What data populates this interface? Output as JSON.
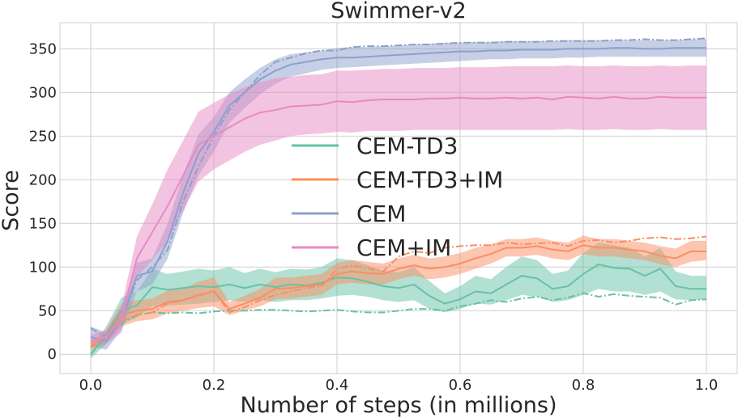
{
  "chart_data": {
    "type": "line",
    "title": "Swimmer-v2",
    "xlabel": "Number of steps (in millions)",
    "ylabel": "Score",
    "xlim": [
      -0.05,
      1.05
    ],
    "ylim": [
      -22,
      380
    ],
    "xticks": [
      0.0,
      0.2,
      0.4,
      0.6,
      0.8,
      1.0
    ],
    "xtick_labels": [
      "0.0",
      "0.2",
      "0.4",
      "0.6",
      "0.8",
      "1.0"
    ],
    "yticks": [
      0,
      50,
      100,
      150,
      200,
      250,
      300,
      350
    ],
    "ytick_labels": [
      "0",
      "50",
      "100",
      "150",
      "200",
      "250",
      "300",
      "350"
    ],
    "grid": true,
    "legend_position": "center",
    "series": [
      {
        "name": "CEM-TD3",
        "color": "#66c2a5",
        "x": [
          0.0,
          0.025,
          0.05,
          0.075,
          0.1,
          0.125,
          0.15,
          0.175,
          0.2,
          0.225,
          0.25,
          0.275,
          0.3,
          0.325,
          0.35,
          0.375,
          0.4,
          0.425,
          0.45,
          0.475,
          0.5,
          0.525,
          0.55,
          0.575,
          0.6,
          0.625,
          0.65,
          0.675,
          0.7,
          0.725,
          0.75,
          0.775,
          0.8,
          0.825,
          0.85,
          0.875,
          0.9,
          0.925,
          0.95,
          0.975,
          1.0
        ],
        "mean": [
          0,
          22,
          50,
          56,
          77,
          74,
          76,
          78,
          77,
          80,
          76,
          80,
          77,
          80,
          79,
          82,
          88,
          87,
          83,
          78,
          76,
          80,
          67,
          58,
          63,
          72,
          70,
          80,
          90,
          87,
          75,
          78,
          92,
          103,
          99,
          98,
          90,
          98,
          78,
          75,
          75
        ],
        "lower": [
          -5,
          12,
          35,
          42,
          55,
          56,
          57,
          58,
          60,
          62,
          60,
          62,
          60,
          62,
          62,
          64,
          67,
          68,
          66,
          62,
          60,
          62,
          52,
          48,
          52,
          58,
          57,
          62,
          68,
          66,
          60,
          62,
          68,
          75,
          72,
          72,
          68,
          72,
          63,
          62,
          62
        ],
        "upper": [
          5,
          32,
          65,
          72,
          98,
          92,
          95,
          98,
          96,
          100,
          93,
          98,
          94,
          98,
          97,
          100,
          110,
          108,
          102,
          96,
          94,
          100,
          84,
          70,
          78,
          90,
          86,
          100,
          112,
          108,
          92,
          96,
          116,
          128,
          125,
          122,
          112,
          122,
          95,
          90,
          90
        ],
        "alt": [
          0,
          20,
          35,
          45,
          48,
          47,
          48,
          47,
          49,
          50,
          50,
          51,
          51,
          50,
          49,
          50,
          51,
          49,
          48,
          48,
          50,
          52,
          52,
          50,
          55,
          58,
          62,
          60,
          64,
          66,
          62,
          65,
          70,
          66,
          69,
          67,
          66,
          65,
          57,
          62,
          63
        ]
      },
      {
        "name": "CEM-TD3+IM",
        "color": "#fc8d62",
        "x": [
          0.0,
          0.025,
          0.05,
          0.075,
          0.1,
          0.125,
          0.15,
          0.175,
          0.2,
          0.225,
          0.25,
          0.275,
          0.3,
          0.325,
          0.35,
          0.375,
          0.4,
          0.425,
          0.45,
          0.475,
          0.5,
          0.525,
          0.55,
          0.575,
          0.6,
          0.625,
          0.65,
          0.675,
          0.7,
          0.725,
          0.75,
          0.775,
          0.8,
          0.825,
          0.85,
          0.875,
          0.9,
          0.925,
          0.95,
          0.975,
          1.0
        ],
        "mean": [
          10,
          20,
          45,
          50,
          52,
          60,
          62,
          68,
          72,
          52,
          58,
          65,
          75,
          76,
          78,
          80,
          92,
          95,
          93,
          92,
          98,
          102,
          98,
          100,
          104,
          110,
          115,
          122,
          122,
          124,
          120,
          118,
          125,
          122,
          122,
          120,
          118,
          113,
          110,
          118,
          118
        ],
        "lower": [
          5,
          12,
          32,
          38,
          40,
          47,
          50,
          53,
          55,
          45,
          50,
          55,
          63,
          64,
          66,
          68,
          80,
          82,
          80,
          80,
          86,
          90,
          86,
          88,
          92,
          98,
          104,
          112,
          112,
          114,
          110,
          108,
          115,
          112,
          112,
          110,
          108,
          103,
          100,
          106,
          108
        ],
        "upper": [
          15,
          28,
          58,
          62,
          64,
          73,
          75,
          83,
          88,
          60,
          67,
          75,
          88,
          88,
          90,
          92,
          105,
          108,
          106,
          104,
          110,
          114,
          110,
          112,
          116,
          122,
          126,
          132,
          132,
          134,
          130,
          128,
          136,
          132,
          132,
          130,
          128,
          124,
          121,
          130,
          130
        ],
        "alt": [
          8,
          20,
          38,
          45,
          48,
          58,
          62,
          67,
          73,
          48,
          54,
          62,
          68,
          72,
          76,
          78,
          98,
          102,
          98,
          95,
          112,
          118,
          116,
          122,
          124,
          125,
          125,
          128,
          126,
          127,
          128,
          124,
          130,
          131,
          128,
          130,
          133,
          134,
          132,
          133,
          135
        ]
      },
      {
        "name": "CEM",
        "color": "#8da0cb",
        "x": [
          0.0,
          0.025,
          0.05,
          0.075,
          0.1,
          0.125,
          0.15,
          0.175,
          0.2,
          0.225,
          0.25,
          0.275,
          0.3,
          0.325,
          0.35,
          0.375,
          0.4,
          0.425,
          0.45,
          0.475,
          0.5,
          0.525,
          0.55,
          0.575,
          0.6,
          0.625,
          0.65,
          0.675,
          0.7,
          0.725,
          0.75,
          0.775,
          0.8,
          0.825,
          0.85,
          0.875,
          0.9,
          0.925,
          0.95,
          0.975,
          1.0
        ],
        "mean": [
          20,
          15,
          40,
          90,
          95,
          130,
          185,
          230,
          255,
          285,
          300,
          315,
          325,
          332,
          335,
          338,
          340,
          340,
          341,
          342,
          343,
          344,
          345,
          346,
          347,
          347,
          348,
          348,
          349,
          349,
          349,
          350,
          350,
          350,
          351,
          351,
          350,
          350,
          351,
          351,
          351
        ],
        "lower": [
          10,
          5,
          28,
          72,
          80,
          110,
          162,
          205,
          232,
          265,
          282,
          298,
          310,
          318,
          322,
          326,
          328,
          329,
          330,
          331,
          332,
          333,
          334,
          335,
          336,
          337,
          338,
          338,
          339,
          339,
          339,
          340,
          340,
          341,
          341,
          341,
          341,
          341,
          341,
          341,
          341
        ],
        "upper": [
          32,
          25,
          54,
          105,
          110,
          150,
          205,
          252,
          272,
          300,
          315,
          328,
          338,
          344,
          346,
          348,
          351,
          352,
          352,
          353,
          354,
          355,
          356,
          357,
          357,
          358,
          358,
          359,
          359,
          359,
          359,
          360,
          360,
          360,
          360,
          360,
          360,
          360,
          360,
          361,
          361
        ],
        "alt": [
          30,
          20,
          40,
          85,
          100,
          120,
          175,
          215,
          250,
          280,
          300,
          320,
          335,
          340,
          345,
          348,
          348,
          352,
          353,
          353,
          354,
          355,
          355,
          356,
          357,
          357,
          357,
          358,
          358,
          358,
          359,
          359,
          359,
          359,
          360,
          360,
          361,
          360,
          360,
          361,
          362
        ]
      },
      {
        "name": "CEM+IM",
        "color": "#e78ac3",
        "x": [
          0.0,
          0.025,
          0.05,
          0.075,
          0.1,
          0.125,
          0.15,
          0.175,
          0.2,
          0.225,
          0.25,
          0.275,
          0.3,
          0.325,
          0.35,
          0.375,
          0.4,
          0.425,
          0.45,
          0.475,
          0.5,
          0.525,
          0.55,
          0.575,
          0.6,
          0.625,
          0.65,
          0.675,
          0.7,
          0.725,
          0.75,
          0.775,
          0.8,
          0.825,
          0.85,
          0.875,
          0.9,
          0.925,
          0.95,
          0.975,
          1.0
        ],
        "mean": [
          15,
          20,
          40,
          110,
          140,
          170,
          205,
          240,
          250,
          260,
          270,
          277,
          280,
          284,
          285,
          286,
          290,
          289,
          291,
          292,
          292,
          292,
          293,
          293,
          294,
          293,
          293,
          294,
          293,
          294,
          292,
          295,
          294,
          293,
          295,
          293,
          293,
          295,
          294,
          294,
          294
        ],
        "lower": [
          8,
          12,
          25,
          88,
          108,
          130,
          165,
          198,
          212,
          222,
          232,
          240,
          245,
          250,
          252,
          253,
          255,
          254,
          256,
          256,
          256,
          257,
          257,
          257,
          257,
          257,
          257,
          257,
          257,
          257,
          257,
          258,
          257,
          257,
          258,
          257,
          257,
          258,
          257,
          257,
          257
        ],
        "upper": [
          22,
          28,
          55,
          135,
          172,
          212,
          245,
          278,
          288,
          298,
          306,
          312,
          316,
          318,
          320,
          321,
          325,
          325,
          326,
          327,
          327,
          328,
          328,
          328,
          329,
          329,
          329,
          330,
          330,
          330,
          330,
          331,
          330,
          330,
          331,
          330,
          330,
          331,
          330,
          331,
          331
        ]
      }
    ]
  }
}
